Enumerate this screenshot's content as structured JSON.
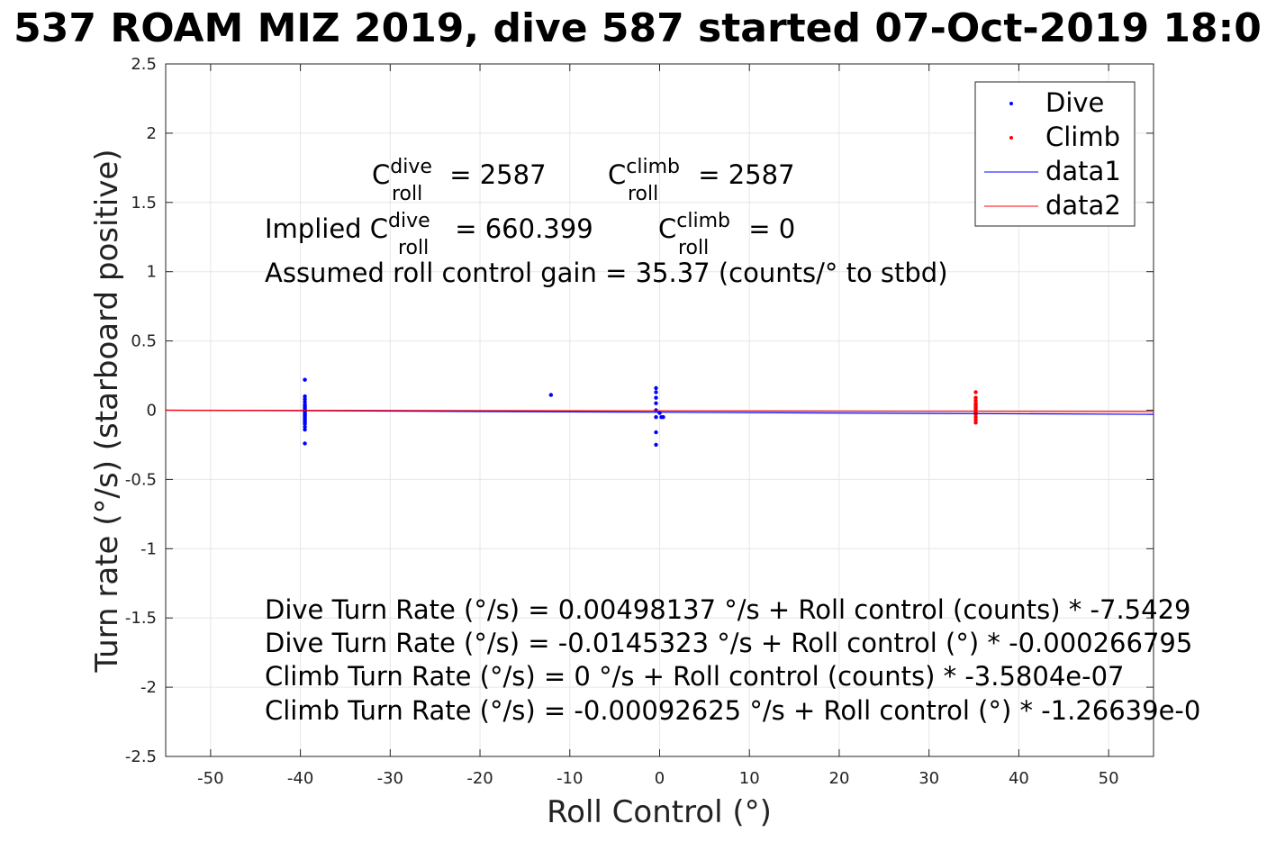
{
  "chart_data": {
    "type": "scatter",
    "title": "537 ROAM MIZ 2019, dive 587 started 07-Oct-2019 18:0",
    "xlabel": "Roll Control (°)",
    "ylabel": "Turn rate (°/s) (starboard positive)",
    "xlim": [
      -55,
      55
    ],
    "ylim": [
      -2.5,
      2.5
    ],
    "xticks": [
      -50,
      -40,
      -30,
      -20,
      -10,
      0,
      10,
      20,
      30,
      40,
      50
    ],
    "yticks": [
      -2.5,
      -2,
      -1.5,
      -1,
      -0.5,
      0,
      0.5,
      1,
      1.5,
      2,
      2.5
    ],
    "xtick_labels": [
      "-50",
      "-40",
      "-30",
      "-20",
      "-10",
      "0",
      "10",
      "20",
      "30",
      "40",
      "50"
    ],
    "ytick_labels": [
      "-2.5",
      "-2",
      "-1.5",
      "-1",
      "-0.5",
      "0",
      "0.5",
      "1",
      "1.5",
      "2",
      "2.5"
    ],
    "grid": true,
    "legend_position": "top-right",
    "series": [
      {
        "name": "Dive",
        "kind": "points",
        "color": "#0000ff",
        "x": [
          -39.5,
          -39.5,
          -39.5,
          -39.5,
          -39.5,
          -39.5,
          -39.5,
          -39.5,
          -39.5,
          -39.5,
          -39.5,
          -39.5,
          -39.5,
          -39.5,
          -39.5,
          -39.5,
          -39.5,
          -39.5,
          -39.5,
          -39.5,
          -39.5,
          -39.5,
          -12.1,
          -0.4,
          -0.4,
          -0.4,
          -0.4,
          -0.4,
          -0.4,
          -0.4,
          -0.4,
          0,
          0.2,
          0.4
        ],
        "y": [
          0.22,
          0.1,
          0.08,
          0.06,
          0.04,
          0.03,
          0.02,
          0.01,
          0.0,
          -0.01,
          -0.02,
          -0.03,
          -0.04,
          -0.05,
          -0.06,
          -0.07,
          -0.08,
          -0.09,
          -0.1,
          -0.12,
          -0.14,
          -0.24,
          0.11,
          0.16,
          0.13,
          0.09,
          0.05,
          0.0,
          -0.05,
          -0.16,
          -0.25,
          -0.02,
          -0.05,
          -0.05
        ]
      },
      {
        "name": "Climb",
        "kind": "points",
        "color": "#ff0000",
        "x": [
          35.2,
          35.2,
          35.2,
          35.2,
          35.2,
          35.2,
          35.2,
          35.2,
          35.2,
          35.2,
          35.2,
          35.2,
          35.2,
          35.2,
          35.2
        ],
        "y": [
          0.13,
          0.09,
          0.07,
          0.05,
          0.04,
          0.03,
          0.02,
          0.01,
          0.0,
          -0.01,
          -0.02,
          -0.03,
          -0.05,
          -0.07,
          -0.09
        ]
      },
      {
        "name": "data1",
        "kind": "line",
        "color": "#0000ff",
        "x": [
          -55,
          55
        ],
        "y": [
          0.0,
          -0.03
        ]
      },
      {
        "name": "data2",
        "kind": "line",
        "color": "#ff0000",
        "x": [
          -55,
          55
        ],
        "y": [
          0.0,
          -0.01
        ]
      }
    ],
    "annotations": {
      "c_roll_dive": {
        "base": "C",
        "sup": "dive",
        "sub": "roll",
        "value": " = 2587"
      },
      "c_roll_climb": {
        "base": "C",
        "sup": "climb",
        "sub": "roll",
        "value": " = 2587"
      },
      "implied_prefix": "Implied ",
      "implied_dive": {
        "base": "C",
        "sup": "dive",
        "sub": "roll",
        "value": " = 660.399"
      },
      "implied_climb": {
        "base": "C",
        "sup": "climb",
        "sub": "roll",
        "value": " = 0"
      },
      "gain": "Assumed roll control gain = 35.37 (counts/° to stbd)",
      "fit_lines": [
        "Dive Turn Rate (°/s) = 0.00498137 °/s + Roll control (counts) * -7.5429",
        "Dive Turn Rate (°/s) = -0.0145323 °/s + Roll control (°) * -0.000266795",
        "Climb Turn Rate (°/s) = 0 °/s + Roll control (counts) * -3.5804e-07",
        "Climb Turn Rate (°/s) = -0.00092625 °/s + Roll control (°) * -1.26639e-0"
      ]
    }
  }
}
